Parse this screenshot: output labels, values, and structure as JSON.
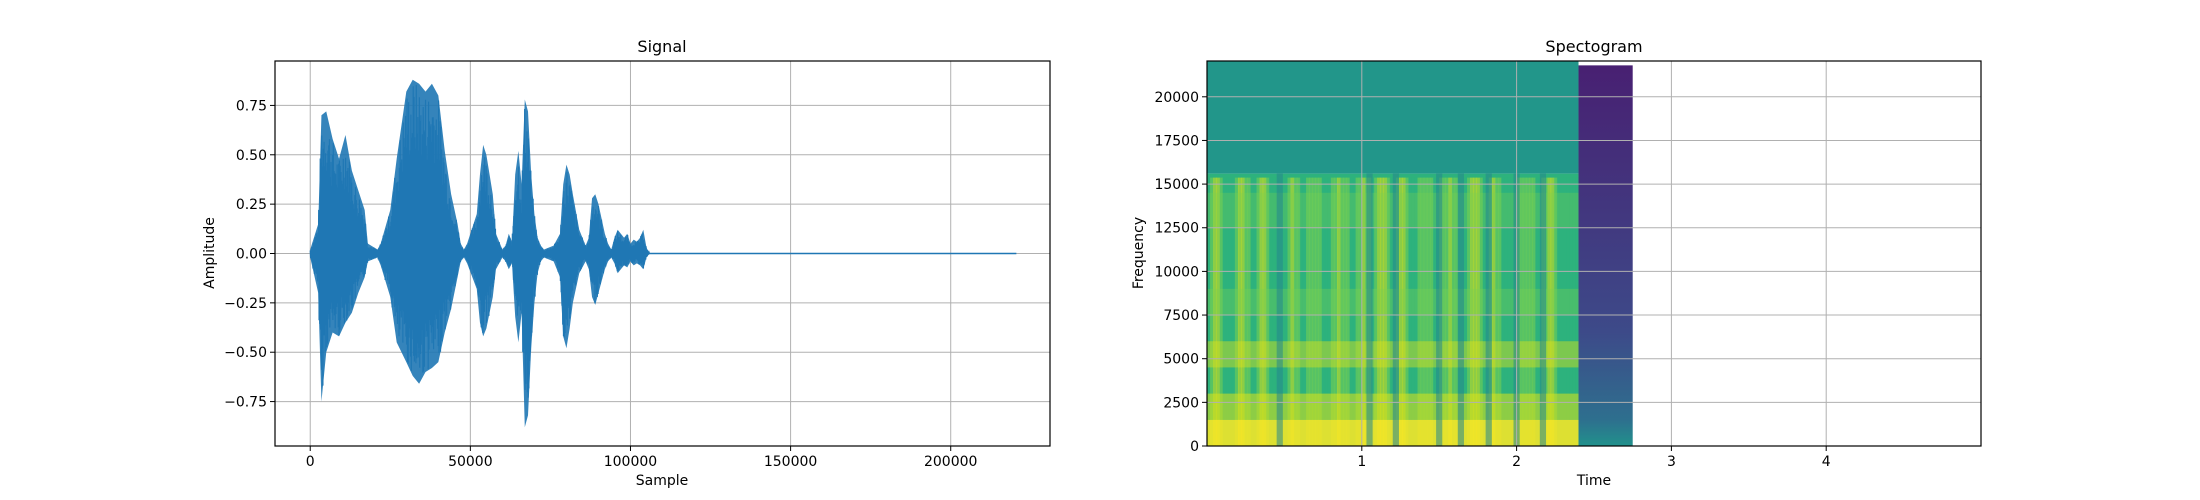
{
  "figure": {
    "background": "#ffffff"
  },
  "chart_data": [
    {
      "type": "line",
      "title": "Signal",
      "xlabel": "Sample",
      "ylabel": "Amplitude",
      "xlim": [
        -11000,
        231000
      ],
      "ylim": [
        -0.975,
        0.975
      ],
      "xticks": [
        0,
        50000,
        100000,
        150000,
        200000
      ],
      "xtick_labels": [
        "0",
        "50000",
        "100000",
        "150000",
        "200000"
      ],
      "yticks": [
        -0.75,
        -0.5,
        -0.25,
        0.0,
        0.25,
        0.5,
        0.75
      ],
      "ytick_labels": [
        "−0.75",
        "−0.50",
        "−0.25",
        "0.00",
        "0.25",
        "0.50",
        "0.75"
      ],
      "grid": true,
      "color": "#1f77b4",
      "samples_total": 220500,
      "envelope": {
        "x": [
          0,
          2500,
          3500,
          5000,
          7000,
          9000,
          11000,
          13000,
          15000,
          17000,
          18000,
          21000,
          22000,
          25000,
          27000,
          30000,
          32000,
          34000,
          36000,
          38000,
          40000,
          42000,
          44000,
          46000,
          47000,
          48000,
          49000,
          52000,
          53000,
          54000,
          55000,
          57000,
          58000,
          60000,
          61000,
          62000,
          63000,
          64000,
          65000,
          66000,
          67000,
          68000,
          69000,
          70000,
          71000,
          72000,
          73000,
          76000,
          78000,
          79000,
          80000,
          81000,
          82000,
          84000,
          86000,
          87000,
          88000,
          89000,
          90000,
          92000,
          93000,
          94000,
          95000,
          96000,
          97000,
          98000,
          99000,
          100000,
          101000,
          102000,
          103000,
          104000,
          105000,
          106000
        ],
        "upper": [
          0.02,
          0.15,
          0.7,
          0.72,
          0.58,
          0.48,
          0.6,
          0.42,
          0.32,
          0.22,
          0.05,
          0.02,
          0.05,
          0.22,
          0.48,
          0.82,
          0.88,
          0.86,
          0.82,
          0.86,
          0.8,
          0.52,
          0.3,
          0.15,
          0.05,
          0.02,
          0.05,
          0.2,
          0.4,
          0.55,
          0.5,
          0.3,
          0.1,
          0.02,
          0.04,
          0.1,
          0.06,
          0.4,
          0.52,
          0.35,
          0.78,
          0.72,
          0.4,
          0.2,
          0.08,
          0.04,
          0.02,
          0.04,
          0.1,
          0.35,
          0.45,
          0.4,
          0.3,
          0.12,
          0.04,
          0.08,
          0.28,
          0.3,
          0.25,
          0.1,
          0.05,
          0.02,
          0.08,
          0.12,
          0.1,
          0.08,
          0.1,
          0.05,
          0.07,
          0.06,
          0.08,
          0.12,
          0.03,
          0.0
        ],
        "lower": [
          -0.02,
          -0.2,
          -0.75,
          -0.5,
          -0.4,
          -0.42,
          -0.35,
          -0.3,
          -0.2,
          -0.12,
          -0.04,
          -0.02,
          -0.06,
          -0.22,
          -0.45,
          -0.55,
          -0.62,
          -0.66,
          -0.6,
          -0.58,
          -0.55,
          -0.4,
          -0.28,
          -0.12,
          -0.04,
          -0.02,
          -0.05,
          -0.18,
          -0.35,
          -0.42,
          -0.38,
          -0.22,
          -0.08,
          -0.02,
          -0.04,
          -0.08,
          -0.05,
          -0.32,
          -0.45,
          -0.3,
          -0.88,
          -0.82,
          -0.48,
          -0.25,
          -0.1,
          -0.04,
          -0.02,
          -0.04,
          -0.12,
          -0.42,
          -0.48,
          -0.38,
          -0.25,
          -0.1,
          -0.04,
          -0.08,
          -0.22,
          -0.26,
          -0.2,
          -0.08,
          -0.04,
          -0.02,
          -0.05,
          -0.1,
          -0.08,
          -0.06,
          -0.07,
          -0.04,
          -0.06,
          -0.05,
          -0.06,
          -0.08,
          -0.02,
          0.0
        ]
      },
      "flat_line_end": 220500
    },
    {
      "type": "heatmap",
      "title": "Spectogram",
      "xlabel": "Time",
      "ylabel": "Frequency",
      "xlim": [
        0,
        5.0
      ],
      "ylim": [
        0,
        22050
      ],
      "xticks": [
        1,
        2,
        3,
        4
      ],
      "xtick_labels": [
        "1",
        "2",
        "3",
        "4"
      ],
      "yticks": [
        0,
        2500,
        5000,
        7500,
        10000,
        12500,
        15000,
        17500,
        20000
      ],
      "ytick_labels": [
        "0",
        "2500",
        "5000",
        "7500",
        "10000",
        "12500",
        "15000",
        "17500",
        "20000"
      ],
      "grid": true,
      "colormap": "viridis",
      "speech_region": {
        "t_start": 0.0,
        "t_end": 2.4,
        "freq_top": 22050
      },
      "silence_region": {
        "t_start": 2.4,
        "t_end": 2.75,
        "freq_top": 21800
      },
      "speech_bands_time": [
        0.05,
        0.22,
        0.35,
        0.55,
        0.68,
        0.85,
        1.0,
        1.12,
        1.25,
        1.4,
        1.55,
        1.72,
        1.85,
        2.05,
        2.2
      ],
      "speech_upper_cutoff_hz": 15600,
      "colors": {
        "upper_flat": "#22968a",
        "mid": "#2db27d",
        "high": "#7ad151",
        "peak": "#dde318",
        "max": "#fde725",
        "silence_top": "#482072",
        "silence_bottom": "#3a528b"
      }
    }
  ]
}
